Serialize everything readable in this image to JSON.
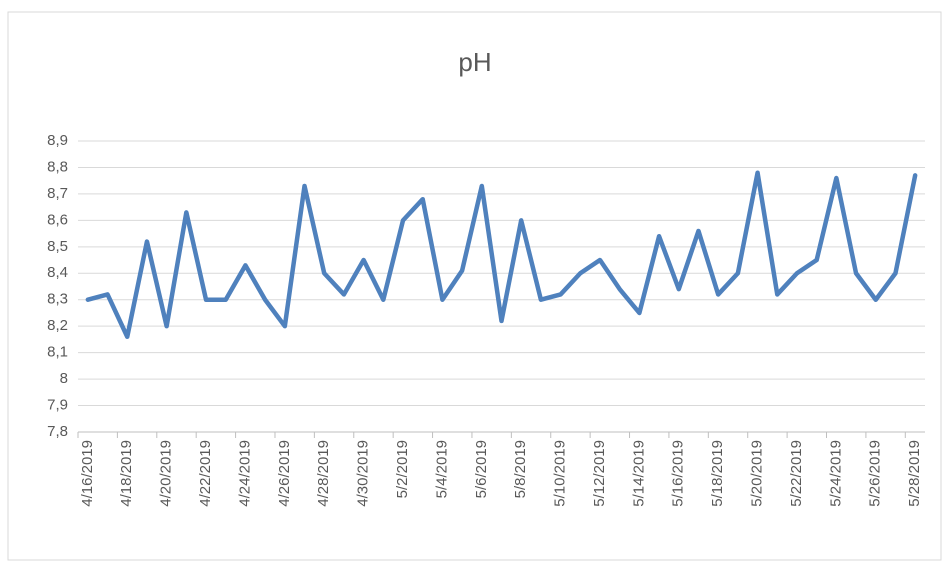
{
  "chart_data": {
    "type": "line",
    "title": "pH",
    "categories": [
      "4/16/2019",
      null,
      "4/18/2019",
      null,
      "4/20/2019",
      null,
      "4/22/2019",
      null,
      "4/24/2019",
      null,
      "4/26/2019",
      null,
      "4/28/2019",
      null,
      "4/30/2019",
      null,
      "5/2/2019",
      null,
      "5/4/2019",
      null,
      "5/6/2019",
      null,
      "5/8/2019",
      null,
      "5/10/2019",
      null,
      "5/12/2019",
      null,
      "5/14/2019",
      null,
      "5/16/2019",
      null,
      "5/18/2019",
      null,
      "5/20/2019",
      null,
      "5/22/2019",
      null,
      "5/24/2019",
      null,
      "5/26/2019",
      null,
      "5/28/2019"
    ],
    "series": [
      {
        "name": "pH",
        "color": "#4f81bd",
        "values": [
          8.3,
          8.32,
          8.16,
          8.52,
          8.2,
          8.63,
          8.3,
          8.3,
          8.43,
          8.3,
          8.2,
          8.73,
          8.4,
          8.32,
          8.45,
          8.3,
          8.6,
          8.68,
          8.3,
          8.41,
          8.73,
          8.22,
          8.6,
          8.3,
          8.32,
          8.4,
          8.45,
          8.34,
          8.25,
          8.54,
          8.34,
          8.56,
          8.32,
          8.4,
          8.78,
          8.32,
          8.4,
          8.45,
          8.76,
          8.4,
          8.3,
          8.4,
          8.77
        ]
      }
    ],
    "ylim": [
      7.8,
      8.9
    ],
    "yticks": [
      {
        "value": 7.8,
        "label": "7,8"
      },
      {
        "value": 7.9,
        "label": "7,9"
      },
      8,
      {
        "value": 8.1,
        "label": "8,1"
      },
      {
        "value": 8.2,
        "label": "8,2"
      },
      {
        "value": 8.3,
        "label": "8,3"
      },
      {
        "value": 8.4,
        "label": "8,4"
      },
      {
        "value": 8.5,
        "label": "8,5"
      },
      {
        "value": 8.6,
        "label": "8,6"
      },
      {
        "value": 8.7,
        "label": "8,7"
      },
      {
        "value": 8.8,
        "label": "8,8"
      },
      {
        "value": 8.9,
        "label": "8,9"
      }
    ],
    "grid": true
  }
}
